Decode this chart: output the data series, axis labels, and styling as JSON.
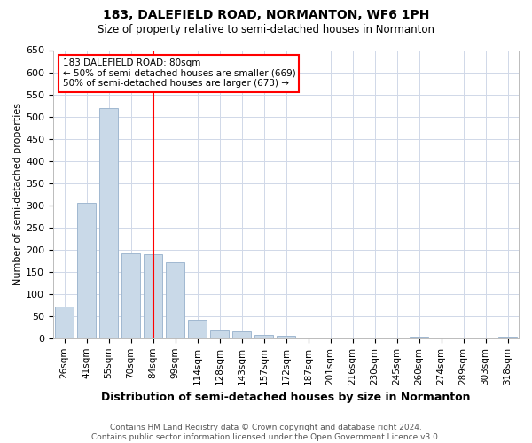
{
  "title": "183, DALEFIELD ROAD, NORMANTON, WF6 1PH",
  "subtitle": "Size of property relative to semi-detached houses in Normanton",
  "xlabel": "Distribution of semi-detached houses by size in Normanton",
  "ylabel": "Number of semi-detached properties",
  "footnote": "Contains HM Land Registry data © Crown copyright and database right 2024.\nContains public sector information licensed under the Open Government Licence v3.0.",
  "bar_labels": [
    "26sqm",
    "41sqm",
    "55sqm",
    "70sqm",
    "84sqm",
    "99sqm",
    "114sqm",
    "128sqm",
    "143sqm",
    "157sqm",
    "172sqm",
    "187sqm",
    "201sqm",
    "216sqm",
    "230sqm",
    "245sqm",
    "260sqm",
    "274sqm",
    "289sqm",
    "303sqm",
    "318sqm"
  ],
  "bar_values": [
    72,
    305,
    520,
    192,
    190,
    172,
    42,
    17,
    15,
    7,
    5,
    1,
    0,
    0,
    0,
    0,
    4,
    0,
    0,
    0,
    4
  ],
  "bar_color": "#c9d9e8",
  "bar_edge_color": "#a0b8d0",
  "red_line_x": 4.0,
  "annotation_line1": "183 DALEFIELD ROAD: 80sqm",
  "annotation_line2": "← 50% of semi-detached houses are smaller (669)",
  "annotation_line3": "50% of semi-detached houses are larger (673) →",
  "ylim": [
    0,
    650
  ],
  "yticks": [
    0,
    50,
    100,
    150,
    200,
    250,
    300,
    350,
    400,
    450,
    500,
    550,
    600,
    650
  ],
  "background_color": "#ffffff",
  "grid_color": "#d0d8e8",
  "title_fontsize": 10,
  "subtitle_fontsize": 8.5,
  "ylabel_fontsize": 8,
  "xlabel_fontsize": 9,
  "tick_fontsize": 8,
  "xtick_fontsize": 7.5,
  "footnote_fontsize": 6.5,
  "annot_fontsize": 7.5
}
